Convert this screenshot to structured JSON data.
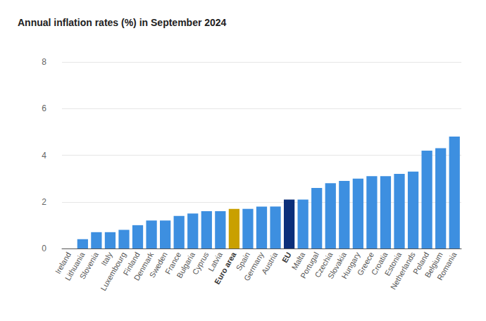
{
  "chart_data": {
    "type": "bar",
    "title": "Annual inflation rates (%) in September 2024",
    "categories": [
      "Ireland",
      "Lithuania",
      "Slovenia",
      "Italy",
      "Luxembourg",
      "Finland",
      "Denmark",
      "Sweden",
      "France",
      "Bulgaria",
      "Cyprus",
      "Latvia",
      "Euro area",
      "Spain",
      "Germany",
      "Austria",
      "EU",
      "Malta",
      "Portugal",
      "Czechia",
      "Slovakia",
      "Hungary",
      "Greece",
      "Croatia",
      "Estonia",
      "Netherlands",
      "Poland",
      "Belgium",
      "Romania"
    ],
    "values": [
      0.0,
      0.4,
      0.7,
      0.7,
      0.8,
      1.0,
      1.2,
      1.2,
      1.4,
      1.5,
      1.6,
      1.6,
      1.7,
      1.7,
      1.8,
      1.8,
      2.1,
      2.1,
      2.6,
      2.8,
      2.9,
      3.0,
      3.1,
      3.1,
      3.2,
      3.3,
      4.2,
      4.3,
      4.8
    ],
    "colors": [
      "#3d8fe0",
      "#3d8fe0",
      "#3d8fe0",
      "#3d8fe0",
      "#3d8fe0",
      "#3d8fe0",
      "#3d8fe0",
      "#3d8fe0",
      "#3d8fe0",
      "#3d8fe0",
      "#3d8fe0",
      "#3d8fe0",
      "#c9a000",
      "#3d8fe0",
      "#3d8fe0",
      "#3d8fe0",
      "#0b2f7a",
      "#3d8fe0",
      "#3d8fe0",
      "#3d8fe0",
      "#3d8fe0",
      "#3d8fe0",
      "#3d8fe0",
      "#3d8fe0",
      "#3d8fe0",
      "#3d8fe0",
      "#3d8fe0",
      "#3d8fe0",
      "#3d8fe0"
    ],
    "ylim": [
      0,
      8
    ],
    "yticks": [
      0,
      2,
      4,
      6,
      8
    ],
    "grid": true
  }
}
